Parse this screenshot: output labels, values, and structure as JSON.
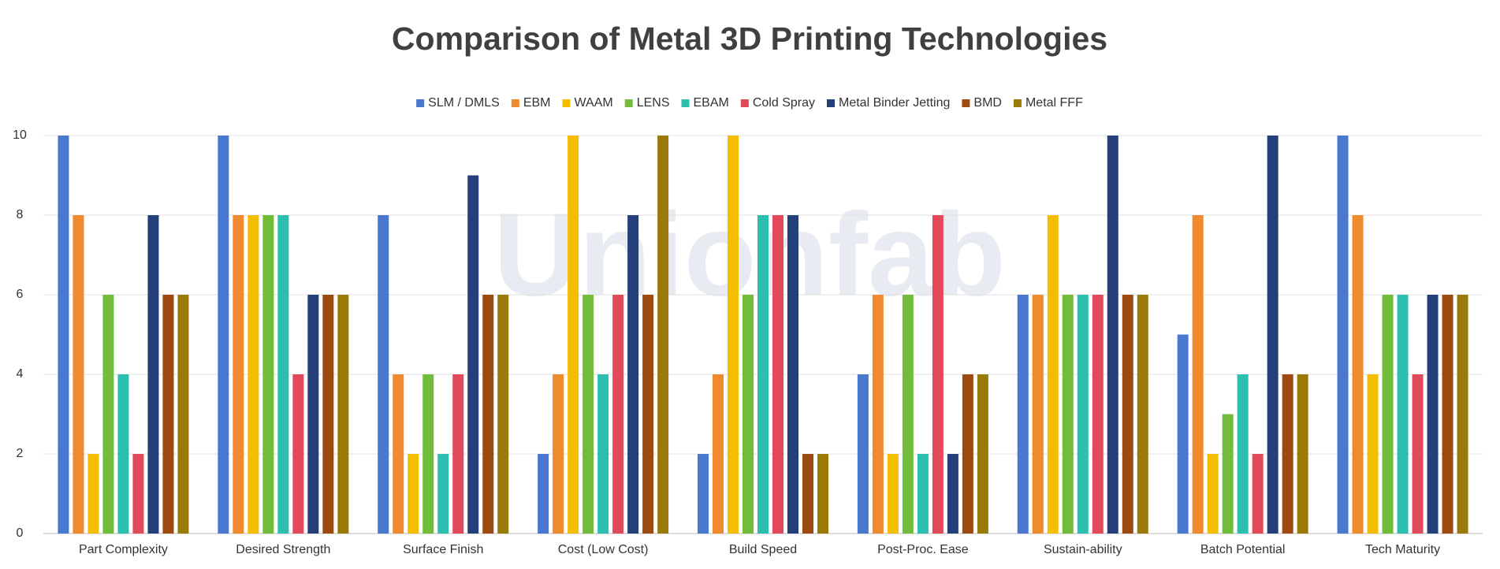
{
  "chart_data": {
    "type": "bar",
    "title": "Comparison of Metal 3D Printing Technologies",
    "watermark": "Unionfab",
    "categories": [
      "Part Complexity",
      "Desired Strength",
      "Surface Finish",
      "Cost (Low Cost)",
      "Build Speed",
      "Post-Proc. Ease",
      "Sustain-ability",
      "Batch Potential",
      "Tech Maturity"
    ],
    "series": [
      {
        "name": "SLM / DMLS",
        "color": "#4a78d0",
        "values": [
          10,
          10,
          8,
          2,
          2,
          4,
          6,
          5,
          10
        ]
      },
      {
        "name": "EBM",
        "color": "#ef8a2f",
        "values": [
          8,
          8,
          4,
          4,
          4,
          6,
          6,
          8,
          8
        ]
      },
      {
        "name": "WAAM",
        "color": "#f5bd00",
        "values": [
          2,
          8,
          2,
          10,
          10,
          2,
          8,
          2,
          4
        ]
      },
      {
        "name": "LENS",
        "color": "#72bc3c",
        "values": [
          6,
          8,
          4,
          6,
          6,
          6,
          6,
          3,
          6
        ]
      },
      {
        "name": "EBAM",
        "color": "#2cbfb0",
        "values": [
          4,
          8,
          2,
          4,
          8,
          2,
          6,
          4,
          6
        ]
      },
      {
        "name": "Cold Spray",
        "color": "#e24a5b",
        "values": [
          2,
          4,
          4,
          6,
          8,
          8,
          6,
          2,
          4
        ]
      },
      {
        "name": "Metal Binder Jetting",
        "color": "#253f7a",
        "values": [
          8,
          6,
          9,
          8,
          8,
          2,
          10,
          10,
          6
        ]
      },
      {
        "name": "BMD",
        "color": "#9c4a10",
        "values": [
          6,
          6,
          6,
          6,
          2,
          4,
          6,
          4,
          6
        ]
      },
      {
        "name": "Metal FFF",
        "color": "#9a7b0a",
        "values": [
          6,
          6,
          6,
          10,
          2,
          4,
          6,
          4,
          6
        ]
      }
    ],
    "ylim": [
      0,
      10
    ],
    "yticks": [
      0,
      2,
      4,
      6,
      8,
      10
    ],
    "grid": true,
    "legend": "top"
  }
}
